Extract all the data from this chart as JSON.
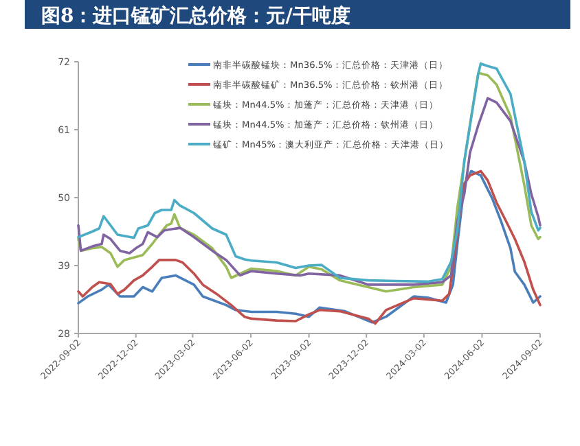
{
  "chart_data": {
    "type": "line",
    "title": "图8：进口锰矿汇总价格：元/干吨度",
    "xlim": [
      "2022-09-02",
      "2024-09-02"
    ],
    "xticks": [
      "2022-09-02",
      "2022-12-02",
      "2023-03-02",
      "2023-06-02",
      "2023-09-02",
      "2023-12-02",
      "2024-03-02",
      "2024-06-02",
      "2024-09-02"
    ],
    "ylim": [
      28,
      72
    ],
    "yticks": [
      28,
      39,
      50,
      61,
      72
    ],
    "legend": "top right",
    "series": [
      {
        "name": "南非半碳酸锰块：Mn36.5%：汇总价格：天津港（日）",
        "color": "#4a7ebb",
        "x": [
          "2022-09-02",
          "2022-09-17",
          "2022-10-09",
          "2022-10-20",
          "2022-11-07",
          "2022-11-29",
          "2022-12-13",
          "2022-12-28",
          "2023-01-12",
          "2023-02-03",
          "2023-03-04",
          "2023-03-18",
          "2023-04-24",
          "2023-05-09",
          "2023-06-03",
          "2023-07-13",
          "2023-08-12",
          "2023-09-02",
          "2023-09-19",
          "2023-10-29",
          "2023-12-11",
          "2024-01-02",
          "2024-02-15",
          "2024-03-08",
          "2024-04-06",
          "2024-04-17",
          "2024-04-24",
          "2024-05-05",
          "2024-05-16",
          "2024-05-31",
          "2024-06-18",
          "2024-07-02",
          "2024-07-17",
          "2024-07-24",
          "2024-08-08",
          "2024-08-22",
          "2024-09-02"
        ],
        "values": [
          32.9,
          34,
          35.1,
          35.9,
          34,
          34,
          35.5,
          34.8,
          37,
          37.4,
          35.9,
          34,
          32.6,
          31.8,
          31.5,
          31.5,
          31.2,
          30.7,
          32.2,
          31.6,
          29.8,
          30.7,
          34,
          33.8,
          33,
          35.9,
          42.5,
          52,
          54.3,
          53.6,
          49.9,
          46.2,
          41.8,
          38,
          35.9,
          33,
          34
        ]
      },
      {
        "name": "南非半碳酸锰矿：Mn36.5%：汇总价格：钦州港（日）",
        "color": "#c0504d",
        "x": [
          "2022-09-02",
          "2022-09-09",
          "2022-09-24",
          "2022-10-05",
          "2022-10-23",
          "2022-11-03",
          "2022-11-14",
          "2022-11-29",
          "2022-12-13",
          "2022-12-28",
          "2023-01-08",
          "2023-02-03",
          "2023-02-14",
          "2023-03-04",
          "2023-03-18",
          "2023-04-09",
          "2023-05-02",
          "2023-05-23",
          "2023-06-03",
          "2023-07-13",
          "2023-08-12",
          "2023-09-02",
          "2023-09-19",
          "2023-10-21",
          "2023-12-05",
          "2023-12-16",
          "2024-01-02",
          "2024-02-15",
          "2024-03-31",
          "2024-04-11",
          "2024-04-22",
          "2024-05-03",
          "2024-05-14",
          "2024-05-31",
          "2024-06-11",
          "2024-06-25",
          "2024-07-10",
          "2024-07-24",
          "2024-08-08",
          "2024-08-22",
          "2024-09-02"
        ],
        "values": [
          34.8,
          34,
          35.5,
          36.3,
          36,
          34.4,
          35.1,
          36.6,
          37.4,
          38.8,
          39.9,
          39.9,
          39.5,
          37.7,
          35.9,
          34.4,
          32.6,
          30.7,
          30.4,
          30.1,
          30,
          31.1,
          31.8,
          31.6,
          30.4,
          29.6,
          31.8,
          33.7,
          33.3,
          34.4,
          42.5,
          52,
          53.6,
          54.3,
          52.8,
          49.2,
          46.2,
          43.3,
          39.6,
          35.1,
          32.6
        ]
      },
      {
        "name": "锰块：Mn44.5%：加蓬产：汇总价格：天津港（日）",
        "color": "#9bbb59",
        "x": [
          "2022-09-02",
          "2022-09-06",
          "2022-09-24",
          "2022-10-09",
          "2022-10-23",
          "2022-11-03",
          "2022-11-14",
          "2022-11-29",
          "2022-12-13",
          "2022-12-28",
          "2023-01-08",
          "2023-01-20",
          "2023-01-27",
          "2023-02-01",
          "2023-02-10",
          "2023-03-04",
          "2023-04-02",
          "2023-04-24",
          "2023-05-02",
          "2023-05-23",
          "2023-06-03",
          "2023-07-13",
          "2023-08-12",
          "2023-09-02",
          "2023-09-22",
          "2023-10-21",
          "2023-12-05",
          "2024-01-02",
          "2024-02-15",
          "2024-03-31",
          "2024-04-14",
          "2024-04-24",
          "2024-05-05",
          "2024-05-16",
          "2024-05-27",
          "2024-06-11",
          "2024-06-25",
          "2024-07-17",
          "2024-08-08",
          "2024-08-19",
          "2024-08-30",
          "2024-09-02"
        ],
        "values": [
          43.3,
          41.4,
          41.8,
          42,
          41,
          38.8,
          39.9,
          40.3,
          40.7,
          42.5,
          44,
          45.5,
          45.8,
          47.3,
          45.1,
          44,
          41.8,
          38.8,
          37,
          38,
          38.5,
          38.1,
          37.4,
          38.8,
          38.4,
          36.6,
          35.5,
          34.8,
          35.5,
          35.9,
          38.8,
          48.4,
          55.8,
          63.2,
          70.2,
          69.8,
          68.3,
          63.2,
          52,
          45.5,
          43.3,
          43.6
        ]
      },
      {
        "name": "锰块：Mn44.5%：加蓬产：汇总价格：钦州港（日）",
        "color": "#8064a2",
        "x": [
          "2022-09-02",
          "2022-09-06",
          "2022-09-24",
          "2022-10-09",
          "2022-10-12",
          "2022-10-23",
          "2022-11-07",
          "2022-11-22",
          "2022-12-02",
          "2022-12-13",
          "2022-12-21",
          "2023-01-05",
          "2023-01-16",
          "2023-02-10",
          "2023-03-04",
          "2023-04-02",
          "2023-04-24",
          "2023-05-16",
          "2023-06-03",
          "2023-07-13",
          "2023-08-19",
          "2023-09-02",
          "2023-10-21",
          "2023-12-05",
          "2024-02-15",
          "2024-03-31",
          "2024-04-14",
          "2024-04-24",
          "2024-05-05",
          "2024-05-14",
          "2024-05-27",
          "2024-06-11",
          "2024-06-25",
          "2024-07-17",
          "2024-08-08",
          "2024-08-19",
          "2024-08-30",
          "2024-09-02"
        ],
        "values": [
          45.5,
          41.4,
          42.1,
          42.5,
          44,
          43.3,
          41.4,
          41,
          41.8,
          42.5,
          44.4,
          43.6,
          44.7,
          45.1,
          43.6,
          41.4,
          39.9,
          37.4,
          38.1,
          37.7,
          37.4,
          37.7,
          37.4,
          35.9,
          35.9,
          36.3,
          37.4,
          46.2,
          50.6,
          57.3,
          61.7,
          66.1,
          65.4,
          62.4,
          55.8,
          50.6,
          46.9,
          45.5
        ]
      },
      {
        "name": "锰矿：Mn45%：澳大利亚产：汇总价格：天津港（日）",
        "color": "#4bacc6",
        "x": [
          "2022-09-02",
          "2022-09-24",
          "2022-10-05",
          "2022-10-12",
          "2022-10-23",
          "2022-11-03",
          "2022-11-29",
          "2022-12-06",
          "2022-12-21",
          "2023-01-01",
          "2023-01-12",
          "2023-01-27",
          "2023-02-01",
          "2023-02-10",
          "2023-03-04",
          "2023-04-02",
          "2023-04-24",
          "2023-05-09",
          "2023-05-23",
          "2023-06-03",
          "2023-07-13",
          "2023-08-12",
          "2023-09-02",
          "2023-09-22",
          "2023-10-21",
          "2023-12-05",
          "2024-01-18",
          "2024-03-08",
          "2024-03-31",
          "2024-04-14",
          "2024-04-24",
          "2024-05-05",
          "2024-05-16",
          "2024-05-27",
          "2024-05-31",
          "2024-06-11",
          "2024-06-25",
          "2024-07-17",
          "2024-08-08",
          "2024-08-19",
          "2024-08-30",
          "2024-09-02"
        ],
        "values": [
          43.6,
          44.5,
          45,
          47,
          45.5,
          44,
          43.5,
          45,
          45.5,
          47.5,
          48,
          48,
          49.6,
          48.7,
          47.5,
          45,
          44,
          40.5,
          40,
          39.8,
          39.5,
          38.6,
          39,
          39.1,
          37,
          36.6,
          36.5,
          36.4,
          36.8,
          39.6,
          44.7,
          56,
          63,
          70,
          71.7,
          71.3,
          70.9,
          66.8,
          55.8,
          47.7,
          44.7,
          45.1
        ]
      }
    ]
  }
}
